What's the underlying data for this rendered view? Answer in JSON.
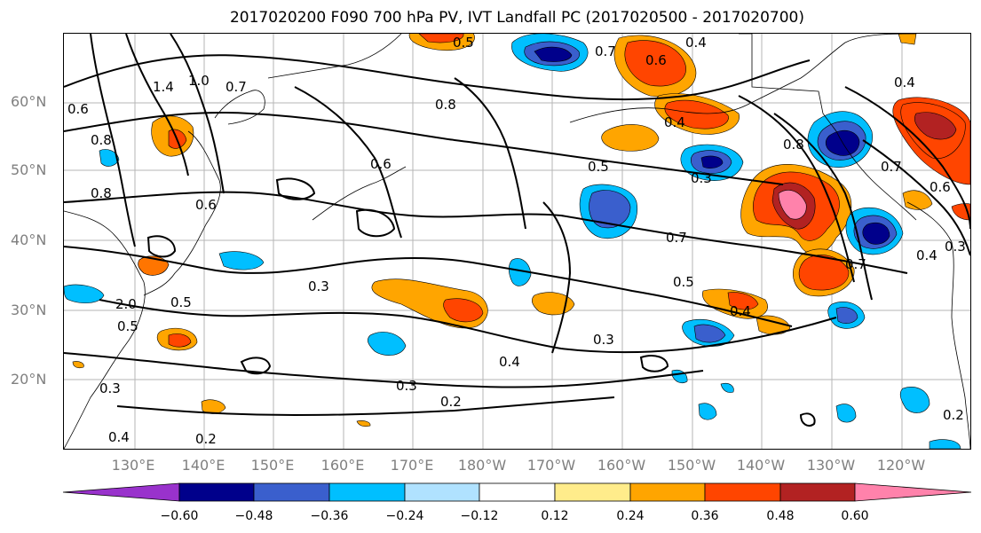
{
  "title": "2017020200 F090 700 hPa PV, IVT Landfall PC (2017020500 - 2017020700)",
  "lat_labels": [
    "60°N",
    "50°N",
    "40°N",
    "30°N",
    "20°N"
  ],
  "lon_labels": [
    "130°E",
    "140°E",
    "150°E",
    "160°E",
    "170°E",
    "180°W",
    "170°W",
    "160°W",
    "150°W",
    "140°W",
    "130°W",
    "120°W"
  ],
  "colorbar": {
    "ticks": [
      "−0.60",
      "−0.48",
      "−0.36",
      "−0.24",
      "−0.12",
      "0.12",
      "0.24",
      "0.36",
      "0.48",
      "0.60"
    ],
    "colors": [
      "#9932cc",
      "#00008b",
      "#3a5fcd",
      "#00bfff",
      "#b0e2ff",
      "#ffffff",
      "#ffec8b",
      "#ffa500",
      "#ff4500",
      "#b22222",
      "#ff82ab"
    ]
  },
  "contour_labels": [
    "1.4",
    "1.0",
    "0.7",
    "0.6",
    "0.8",
    "0.5",
    "0.7",
    "0.8",
    "0.6",
    "0.4",
    "0.6",
    "0.4",
    "0.5",
    "0.3",
    "0.8",
    "0.7",
    "0.6",
    "0.8",
    "0.7",
    "0.5",
    "0.6",
    "0.3",
    "0.5",
    "0.4",
    "0.7",
    "0.3",
    "0.4",
    "0.3",
    "0.2",
    "2.0",
    "0.5",
    "0.4",
    "0.3",
    "0.4",
    "0.2",
    "0.2",
    "0.4",
    "0.3"
  ]
}
